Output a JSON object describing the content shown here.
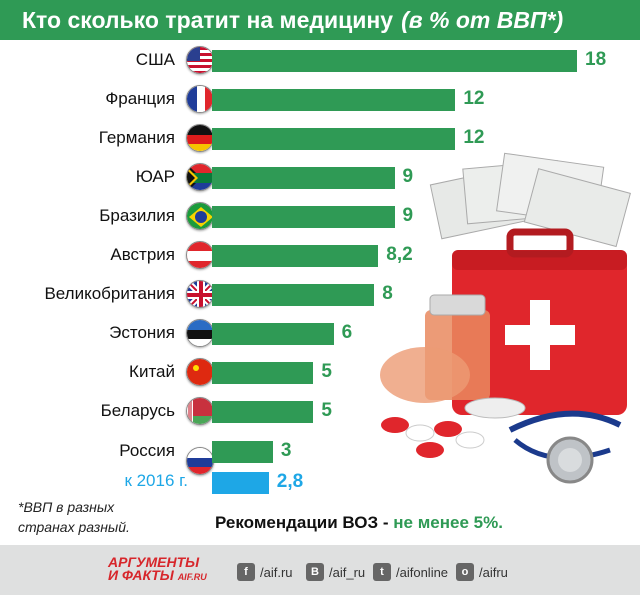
{
  "header": {
    "title": "Кто сколько тратит на медицину",
    "subtitle": "(в % от ВВП*)"
  },
  "chart_data": {
    "type": "bar",
    "orientation": "horizontal",
    "title": "Кто сколько тратит на медицину",
    "subtitle": "(в % от ВВП*)",
    "categories": [
      "США",
      "Франция",
      "Германия",
      "ЮАР",
      "Бразилия",
      "Австрия",
      "Великобритания",
      "Эстония",
      "Китай",
      "Беларусь",
      "Россия",
      "к 2016 г."
    ],
    "values": [
      18,
      12,
      12,
      9,
      9,
      8.2,
      8,
      6,
      5,
      5,
      3,
      2.8
    ],
    "value_labels": [
      "18",
      "12",
      "12",
      "9",
      "9",
      "8,2",
      "8",
      "6",
      "5",
      "5",
      "3",
      "2,8"
    ],
    "colors": {
      "bar": "#2f9a55",
      "forecast": "#1ea7e6"
    },
    "xlim": [
      0,
      18
    ],
    "grid": false
  },
  "footnote": "*ВВП в разных странах разный.",
  "recommendation": {
    "prefix": "Рекомендации ВОЗ - ",
    "highlight": "не менее 5%."
  },
  "footer": {
    "logo_line1": "АРГУМЕНТЫ",
    "logo_line2": "И ФАКТЫ",
    "logo_site": "AIF.RU",
    "social": [
      {
        "icon": "facebook-icon",
        "glyph": "f",
        "text": "/aif.ru"
      },
      {
        "icon": "vk-icon",
        "glyph": "В",
        "text": "/aif_ru"
      },
      {
        "icon": "twitter-icon",
        "glyph": "t",
        "text": "/aifonline"
      },
      {
        "icon": "odnoklassniki-icon",
        "glyph": "о",
        "text": "/aifru"
      }
    ]
  }
}
